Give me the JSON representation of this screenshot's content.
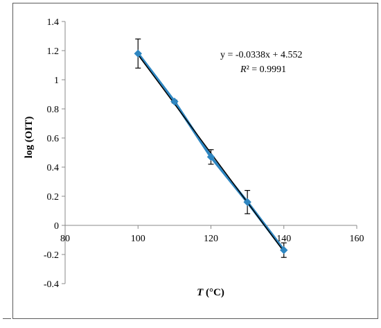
{
  "chart_data": {
    "type": "scatter",
    "xlabel": {
      "var": "T",
      "unit": " (°C)"
    },
    "ylabel": "log (OIT)",
    "xlim": [
      80,
      160
    ],
    "ylim": [
      -0.4,
      1.4
    ],
    "x_ticks": [
      "80",
      "100",
      "120",
      "140",
      "160"
    ],
    "y_ticks": [
      "-0.4",
      "-0.2",
      "0",
      "0.2",
      "0.4",
      "0.6",
      "0.8",
      "1",
      "1.2",
      "1.4"
    ],
    "x_tick_values": [
      80,
      100,
      120,
      140,
      160
    ],
    "y_tick_values": [
      -0.4,
      -0.2,
      0,
      0.2,
      0.4,
      0.6,
      0.8,
      1,
      1.2,
      1.4
    ],
    "grid": false,
    "series": [
      {
        "x": [
          100,
          110,
          120,
          130,
          140
        ],
        "y": [
          1.18,
          0.85,
          0.47,
          0.16,
          -0.17
        ],
        "error": [
          0.1,
          0.01,
          0.05,
          0.08,
          0.05
        ],
        "color": "#2e86c1",
        "marker": "diamond"
      }
    ],
    "trendline": {
      "slope": -0.0338,
      "intercept": 4.552,
      "x_range": [
        100,
        140
      ],
      "color": "#000000",
      "equation": "y = -0.0338x + 4.552",
      "r2_label": "R² = 0.9991"
    }
  }
}
